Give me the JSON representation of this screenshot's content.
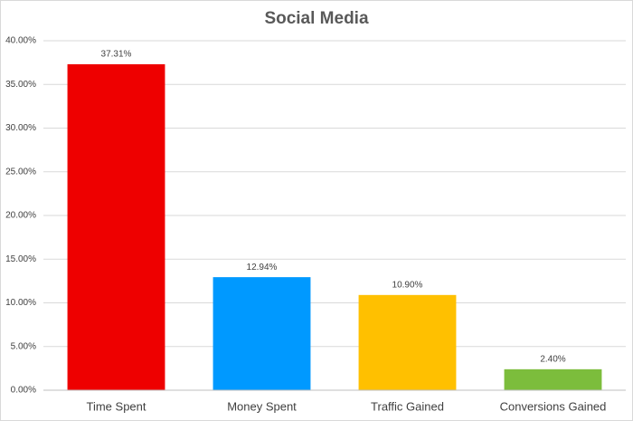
{
  "chart_data": {
    "type": "bar",
    "title": "Social Media",
    "categories": [
      "Time Spent",
      "Money Spent",
      "Traffic Gained",
      "Conversions Gained"
    ],
    "values": [
      37.31,
      12.94,
      10.9,
      2.4
    ],
    "value_labels": [
      "37.31%",
      "12.94%",
      "10.90%",
      "2.40%"
    ],
    "colors": [
      "#ee0000",
      "#0099ff",
      "#ffc000",
      "#7cbd3c"
    ],
    "ylim": [
      0,
      40
    ],
    "yticks": [
      {
        "value": 0,
        "label": "0.00%"
      },
      {
        "value": 5,
        "label": "5.00%"
      },
      {
        "value": 10,
        "label": "10.00%"
      },
      {
        "value": 15,
        "label": "15.00%"
      },
      {
        "value": 20,
        "label": "20.00%"
      },
      {
        "value": 25,
        "label": "25.00%"
      },
      {
        "value": 30,
        "label": "30.00%"
      },
      {
        "value": 35,
        "label": "35.00%"
      },
      {
        "value": 40,
        "label": "40.00%"
      }
    ],
    "grid": true
  }
}
